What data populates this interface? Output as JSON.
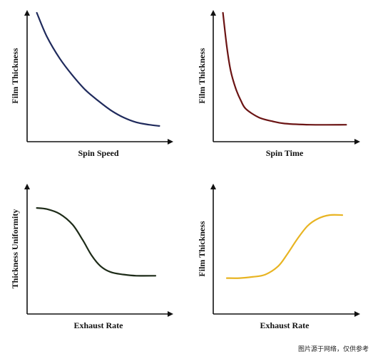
{
  "chart_data": [
    {
      "type": "line",
      "xlabel": "Spin Speed",
      "ylabel": "Film Thickness",
      "color": "#1f2a5c",
      "ylim": [
        0,
        1
      ],
      "x": [
        0.02,
        0.1,
        0.2,
        0.3,
        0.4,
        0.5,
        0.6,
        0.7,
        0.8,
        0.9,
        0.98
      ],
      "series": [
        {
          "values": [
            1.0,
            0.8,
            0.62,
            0.48,
            0.36,
            0.27,
            0.19,
            0.13,
            0.09,
            0.07,
            0.06
          ]
        }
      ]
    },
    {
      "type": "line",
      "xlabel": "Spin Time",
      "ylabel": "Film Thickness",
      "color": "#6b1414",
      "ylim": [
        0,
        1
      ],
      "x": [
        0.02,
        0.05,
        0.08,
        0.12,
        0.16,
        0.2,
        0.3,
        0.4,
        0.5,
        0.7,
        0.98
      ],
      "series": [
        {
          "values": [
            1.0,
            0.72,
            0.52,
            0.37,
            0.27,
            0.2,
            0.13,
            0.1,
            0.08,
            0.07,
            0.07
          ]
        }
      ]
    },
    {
      "type": "line",
      "xlabel": "Exhaust Rate",
      "ylabel": "Thickness Uniformity",
      "color": "#1d2b18",
      "ylim": [
        0,
        1
      ],
      "x": [
        0.02,
        0.1,
        0.2,
        0.3,
        0.38,
        0.45,
        0.52,
        0.6,
        0.7,
        0.8,
        0.95
      ],
      "series": [
        {
          "values": [
            0.82,
            0.81,
            0.77,
            0.68,
            0.55,
            0.42,
            0.33,
            0.28,
            0.26,
            0.25,
            0.25
          ]
        }
      ]
    },
    {
      "type": "line",
      "xlabel": "Exhaust Rate",
      "ylabel": "Film Thickness",
      "color": "#e8b422",
      "ylim": [
        0,
        1
      ],
      "x": [
        0.05,
        0.15,
        0.25,
        0.35,
        0.45,
        0.52,
        0.6,
        0.68,
        0.76,
        0.85,
        0.95
      ],
      "series": [
        {
          "values": [
            0.23,
            0.23,
            0.24,
            0.26,
            0.33,
            0.43,
            0.56,
            0.67,
            0.73,
            0.76,
            0.76
          ]
        }
      ]
    }
  ],
  "watermark": "图片源于网络，仅供参考"
}
